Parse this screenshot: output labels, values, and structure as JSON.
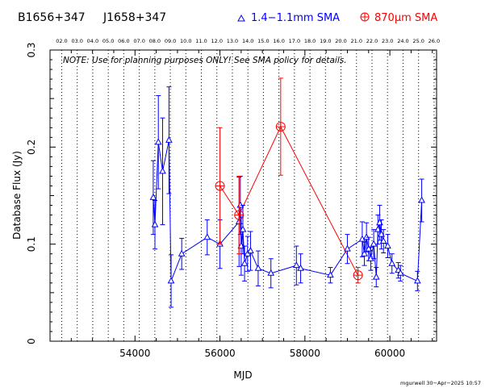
{
  "header": {
    "source_names": [
      "B1656+347",
      "J1658+347"
    ],
    "legend": [
      {
        "symbol": "triangle",
        "label": "1.4−1.1mm SMA",
        "color": "#0000ff"
      },
      {
        "symbol": "circle-plus",
        "label": "870μm SMA",
        "color": "#ff0000"
      }
    ]
  },
  "note": "NOTE: Use for planning purposes ONLY!  See SMA policy for details.",
  "footer": "mgurwell 30−Apr−2025 10:57",
  "chart_data": {
    "type": "scatter",
    "xlabel": "MJD",
    "ylabel": "Database Flux (Jy)",
    "xlim": [
      52000,
      61100
    ],
    "ylim": [
      0,
      0.3
    ],
    "x_ticks": [
      54000,
      56000,
      58000,
      60000
    ],
    "y_ticks": [
      0,
      0.1,
      0.2,
      0.3
    ],
    "y_tick_labels": [
      "0",
      "0.1",
      "0.2",
      "0.3"
    ],
    "top_axis_labels": [
      "02.0",
      "03.0",
      "04.0",
      "05.0",
      "06.0",
      "07.0",
      "08.0",
      "09.0",
      "10.0",
      "11.0",
      "12.0",
      "13.0",
      "14.0",
      "15.0",
      "16.0",
      "17.0",
      "18.0",
      "19.0",
      "20.0",
      "21.0",
      "22.0",
      "23.0",
      "24.0",
      "25.0",
      "26.0"
    ],
    "top_axis_start_mjd": 52275,
    "top_axis_step_mjd": 365.25,
    "grid": "vertical dotted lines at each top-axis year",
    "series": [
      {
        "name": "1.4−1.1mm SMA",
        "color": "#0000ff",
        "marker": "triangle",
        "points": [
          {
            "x": 54430,
            "y": 0.148,
            "err": 0.038
          },
          {
            "x": 54470,
            "y": 0.12,
            "err": 0.025
          },
          {
            "x": 54550,
            "y": 0.205,
            "err": 0.048
          },
          {
            "x": 54650,
            "y": 0.175,
            "err": 0.055
          },
          {
            "x": 54800,
            "y": 0.207,
            "err": 0.055
          },
          {
            "x": 54850,
            "y": 0.062,
            "err": 0.027
          },
          {
            "x": 55100,
            "y": 0.09,
            "err": 0.016
          },
          {
            "x": 55700,
            "y": 0.107,
            "err": 0.018
          },
          {
            "x": 56000,
            "y": 0.1,
            "err": 0.025
          },
          {
            "x": 56450,
            "y": 0.123,
            "err": 0.046
          },
          {
            "x": 56480,
            "y": 0.14,
            "err": 0.03
          },
          {
            "x": 56500,
            "y": 0.098,
            "err": 0.03
          },
          {
            "x": 56540,
            "y": 0.115,
            "err": 0.025
          },
          {
            "x": 56580,
            "y": 0.08,
            "err": 0.018
          },
          {
            "x": 56650,
            "y": 0.09,
            "err": 0.018
          },
          {
            "x": 56720,
            "y": 0.093,
            "err": 0.02
          },
          {
            "x": 56900,
            "y": 0.075,
            "err": 0.018
          },
          {
            "x": 57200,
            "y": 0.07,
            "err": 0.015
          },
          {
            "x": 57800,
            "y": 0.078,
            "err": 0.02
          },
          {
            "x": 57900,
            "y": 0.075,
            "err": 0.015
          },
          {
            "x": 58600,
            "y": 0.068,
            "err": 0.008
          },
          {
            "x": 59000,
            "y": 0.095,
            "err": 0.015
          },
          {
            "x": 59350,
            "y": 0.105,
            "err": 0.018
          },
          {
            "x": 59400,
            "y": 0.09,
            "err": 0.012
          },
          {
            "x": 59450,
            "y": 0.107,
            "err": 0.015
          },
          {
            "x": 59500,
            "y": 0.095,
            "err": 0.012
          },
          {
            "x": 59550,
            "y": 0.085,
            "err": 0.012
          },
          {
            "x": 59620,
            "y": 0.1,
            "err": 0.015
          },
          {
            "x": 59680,
            "y": 0.066,
            "err": 0.01
          },
          {
            "x": 59720,
            "y": 0.115,
            "err": 0.015
          },
          {
            "x": 59760,
            "y": 0.122,
            "err": 0.018
          },
          {
            "x": 59800,
            "y": 0.11,
            "err": 0.015
          },
          {
            "x": 59850,
            "y": 0.103,
            "err": 0.012
          },
          {
            "x": 59950,
            "y": 0.098,
            "err": 0.012
          },
          {
            "x": 60050,
            "y": 0.08,
            "err": 0.01
          },
          {
            "x": 60200,
            "y": 0.073,
            "err": 0.008
          },
          {
            "x": 60250,
            "y": 0.07,
            "err": 0.008
          },
          {
            "x": 60650,
            "y": 0.062,
            "err": 0.01
          },
          {
            "x": 60750,
            "y": 0.145,
            "err": 0.022
          }
        ]
      },
      {
        "name": "870μm SMA",
        "color": "#ff0000",
        "marker": "circle-plus",
        "points": [
          {
            "x": 56000,
            "y": 0.16,
            "err": 0.06
          },
          {
            "x": 56450,
            "y": 0.13,
            "err": 0.04
          },
          {
            "x": 57430,
            "y": 0.221,
            "err": 0.05
          },
          {
            "x": 59250,
            "y": 0.068,
            "err": 0.008
          }
        ]
      }
    ]
  }
}
